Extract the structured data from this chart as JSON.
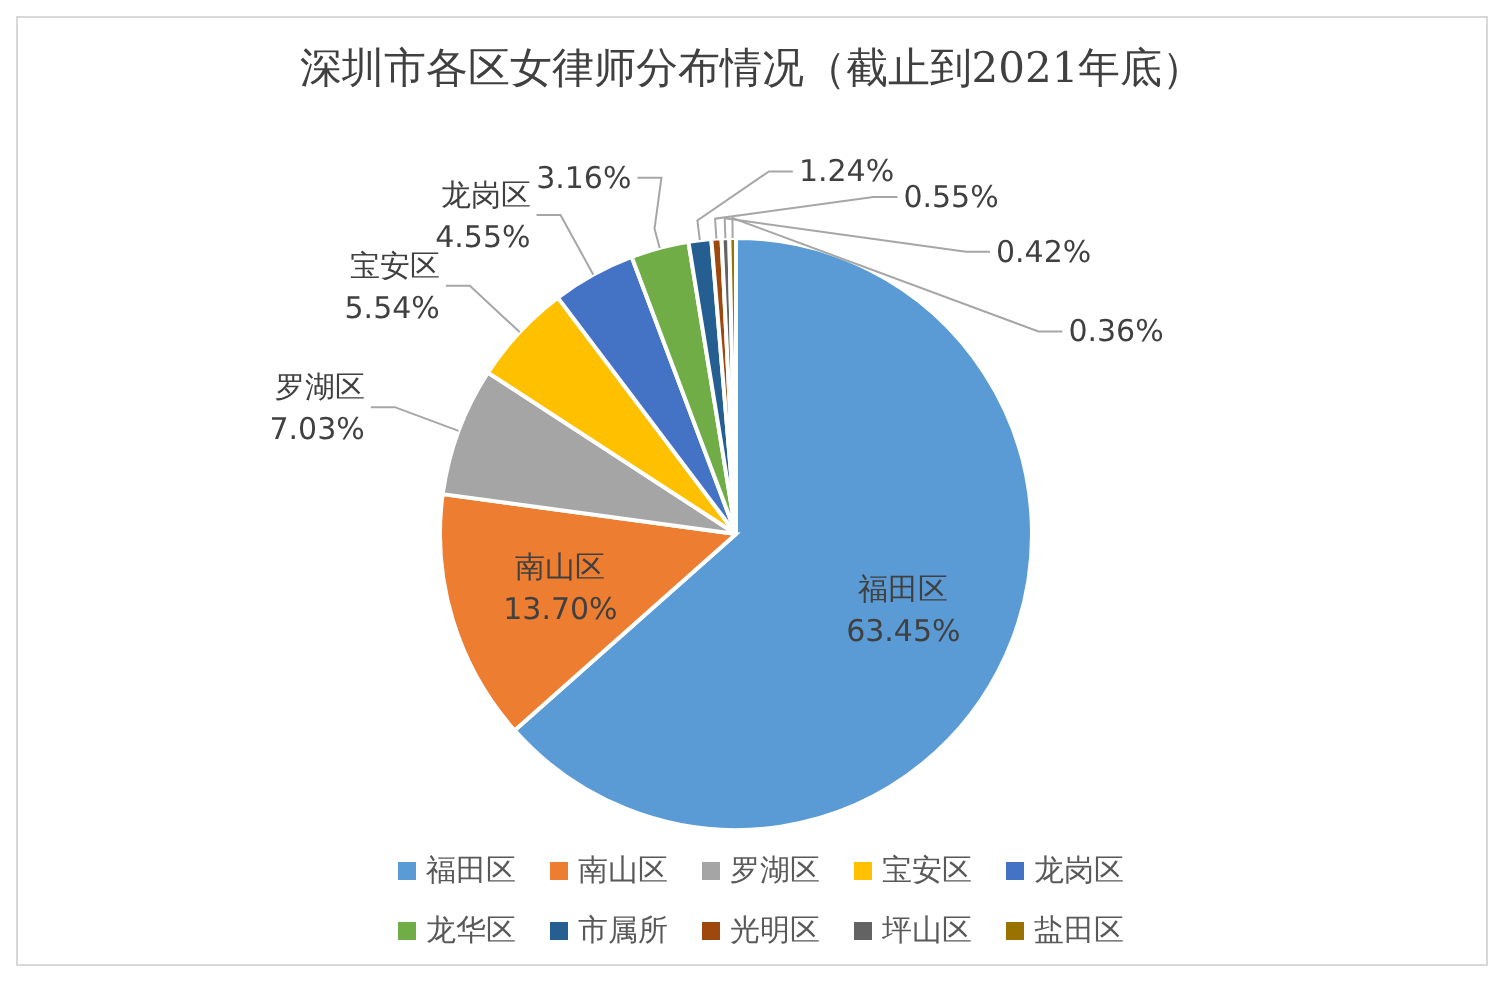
{
  "chart_data": {
    "type": "pie",
    "title": "深圳市各区女律师分布情况（截止到2021年底）",
    "categories": [
      "福田区",
      "南山区",
      "罗湖区",
      "宝安区",
      "龙岗区",
      "龙华区",
      "市属所",
      "光明区",
      "坪山区",
      "盐田区"
    ],
    "values": [
      63.45,
      13.7,
      7.03,
      5.54,
      4.55,
      3.16,
      1.24,
      0.55,
      0.42,
      0.36
    ],
    "value_labels": [
      "福田区\n63.45%",
      "南山区\n13.70%",
      "罗湖区\n7.03%",
      "宝安区\n5.54%",
      "龙岗区\n4.55%",
      "3.16%",
      "1.24%",
      "0.55%",
      "0.42%",
      "0.36%"
    ],
    "colors": [
      "#5b9bd5",
      "#ed7d31",
      "#a5a5a5",
      "#ffc000",
      "#4472c4",
      "#70ad47",
      "#255e91",
      "#9e480e",
      "#636363",
      "#997300"
    ],
    "legend": "bottom"
  }
}
